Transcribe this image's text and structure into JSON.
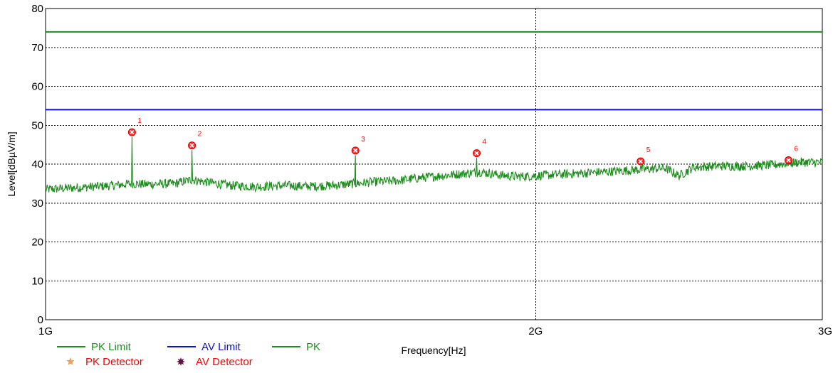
{
  "chart_data": {
    "type": "line",
    "xlabel": "Frequency[Hz]",
    "ylabel": "Level[dBµV/m]",
    "xlim": [
      1,
      3
    ],
    "ylim": [
      0,
      80
    ],
    "x_scale": "log",
    "x_ticks": [
      {
        "value": 1,
        "label": "1G"
      },
      {
        "value": 2,
        "label": "2G"
      },
      {
        "value": 3,
        "label": "3G"
      }
    ],
    "y_ticks": [
      0,
      10,
      20,
      30,
      40,
      50,
      60,
      70,
      80
    ],
    "grid": "dotted",
    "limits": [
      {
        "name": "PK Limit",
        "value": 74,
        "color": "#1e8c1e"
      },
      {
        "name": "AV Limit",
        "value": 54,
        "color": "#1010d0"
      }
    ],
    "series": [
      {
        "name": "PK",
        "color": "#1e8c1e",
        "x": [
          1.0,
          1.05,
          1.1,
          1.13,
          1.15,
          1.2,
          1.23,
          1.25,
          1.3,
          1.35,
          1.4,
          1.45,
          1.5,
          1.55,
          1.6,
          1.65,
          1.7,
          1.75,
          1.8,
          1.85,
          1.9,
          1.95,
          2.0,
          2.1,
          2.2,
          2.3,
          2.4,
          2.45,
          2.5,
          2.6,
          2.7,
          2.8,
          2.9,
          3.0
        ],
        "values": [
          33.5,
          34.0,
          34.5,
          35.0,
          34.8,
          35.0,
          36.0,
          35.5,
          34.5,
          34.2,
          34.5,
          34.3,
          34.5,
          35.0,
          35.5,
          35.8,
          36.5,
          37.0,
          37.5,
          38.0,
          37.2,
          36.8,
          37.0,
          37.5,
          38.0,
          38.5,
          39.0,
          37.0,
          39.2,
          39.5,
          39.5,
          39.8,
          40.5,
          40.5
        ]
      }
    ],
    "markers": [
      {
        "label": "1",
        "x": 1.13,
        "y": 48.2
      },
      {
        "label": "2",
        "x": 1.23,
        "y": 44.8
      },
      {
        "label": "3",
        "x": 1.55,
        "y": 43.5
      },
      {
        "label": "4",
        "x": 1.84,
        "y": 42.8
      },
      {
        "label": "5",
        "x": 2.32,
        "y": 40.7
      },
      {
        "label": "6",
        "x": 2.86,
        "y": 41.0
      }
    ],
    "legend": [
      {
        "label": "PK Limit",
        "kind": "line",
        "color": "#1e8c1e",
        "text_color": "#1e8c1e"
      },
      {
        "label": "AV Limit",
        "kind": "line",
        "color": "#1010d0",
        "text_color": "#1010d0"
      },
      {
        "label": "PK",
        "kind": "line",
        "color": "#1e8c1e",
        "text_color": "#1e8c1e"
      },
      {
        "label": "PK Detector",
        "kind": "star",
        "color": "#f0a050",
        "text_color": "#ff0000"
      },
      {
        "label": "AV Detector",
        "kind": "star",
        "color": "#6a1040",
        "text_color": "#ff0000"
      }
    ]
  }
}
